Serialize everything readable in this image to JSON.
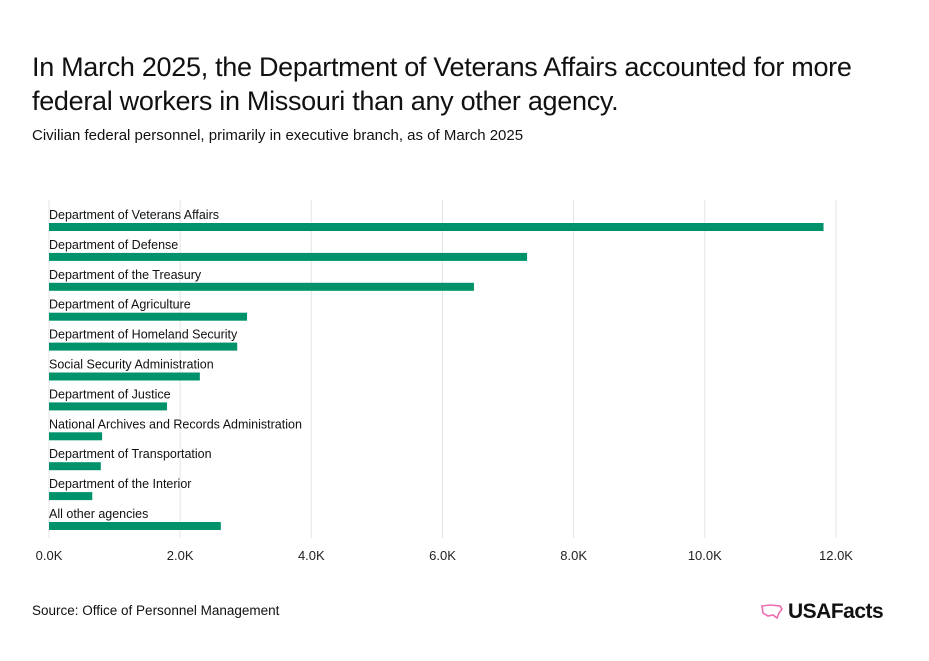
{
  "title": "In March 2025, the Department of Veterans Affairs accounted for more federal workers in Missouri than any other agency.",
  "subtitle": "Civilian federal personnel, primarily in executive branch, as of March 2025",
  "source": "Source: Office of Personnel Management",
  "logo": "USAFacts",
  "colors": {
    "bar": "#00936b",
    "grid": "#e5e5e5",
    "logo": "#f06bb0"
  },
  "chart_data": {
    "type": "bar",
    "orientation": "horizontal",
    "categories": [
      "Department of Veterans Affairs",
      "Department of Defense",
      "Department of the Treasury",
      "Department of Agriculture",
      "Department of Homeland Security",
      "Social Security Administration",
      "Department of Justice",
      "National Archives and Records Administration",
      "Department of Transportation",
      "Department of the Interior",
      "All other agencies"
    ],
    "values": [
      11810,
      7290,
      6480,
      3020,
      2870,
      2300,
      1800,
      810,
      790,
      660,
      2620
    ],
    "xlim": [
      0,
      12000
    ],
    "ticks": [
      0,
      2000,
      4000,
      6000,
      8000,
      10000,
      12000
    ],
    "tick_labels": [
      "0.0K",
      "2.0K",
      "4.0K",
      "6.0K",
      "8.0K",
      "10.0K",
      "12.0K"
    ],
    "grid": true
  }
}
